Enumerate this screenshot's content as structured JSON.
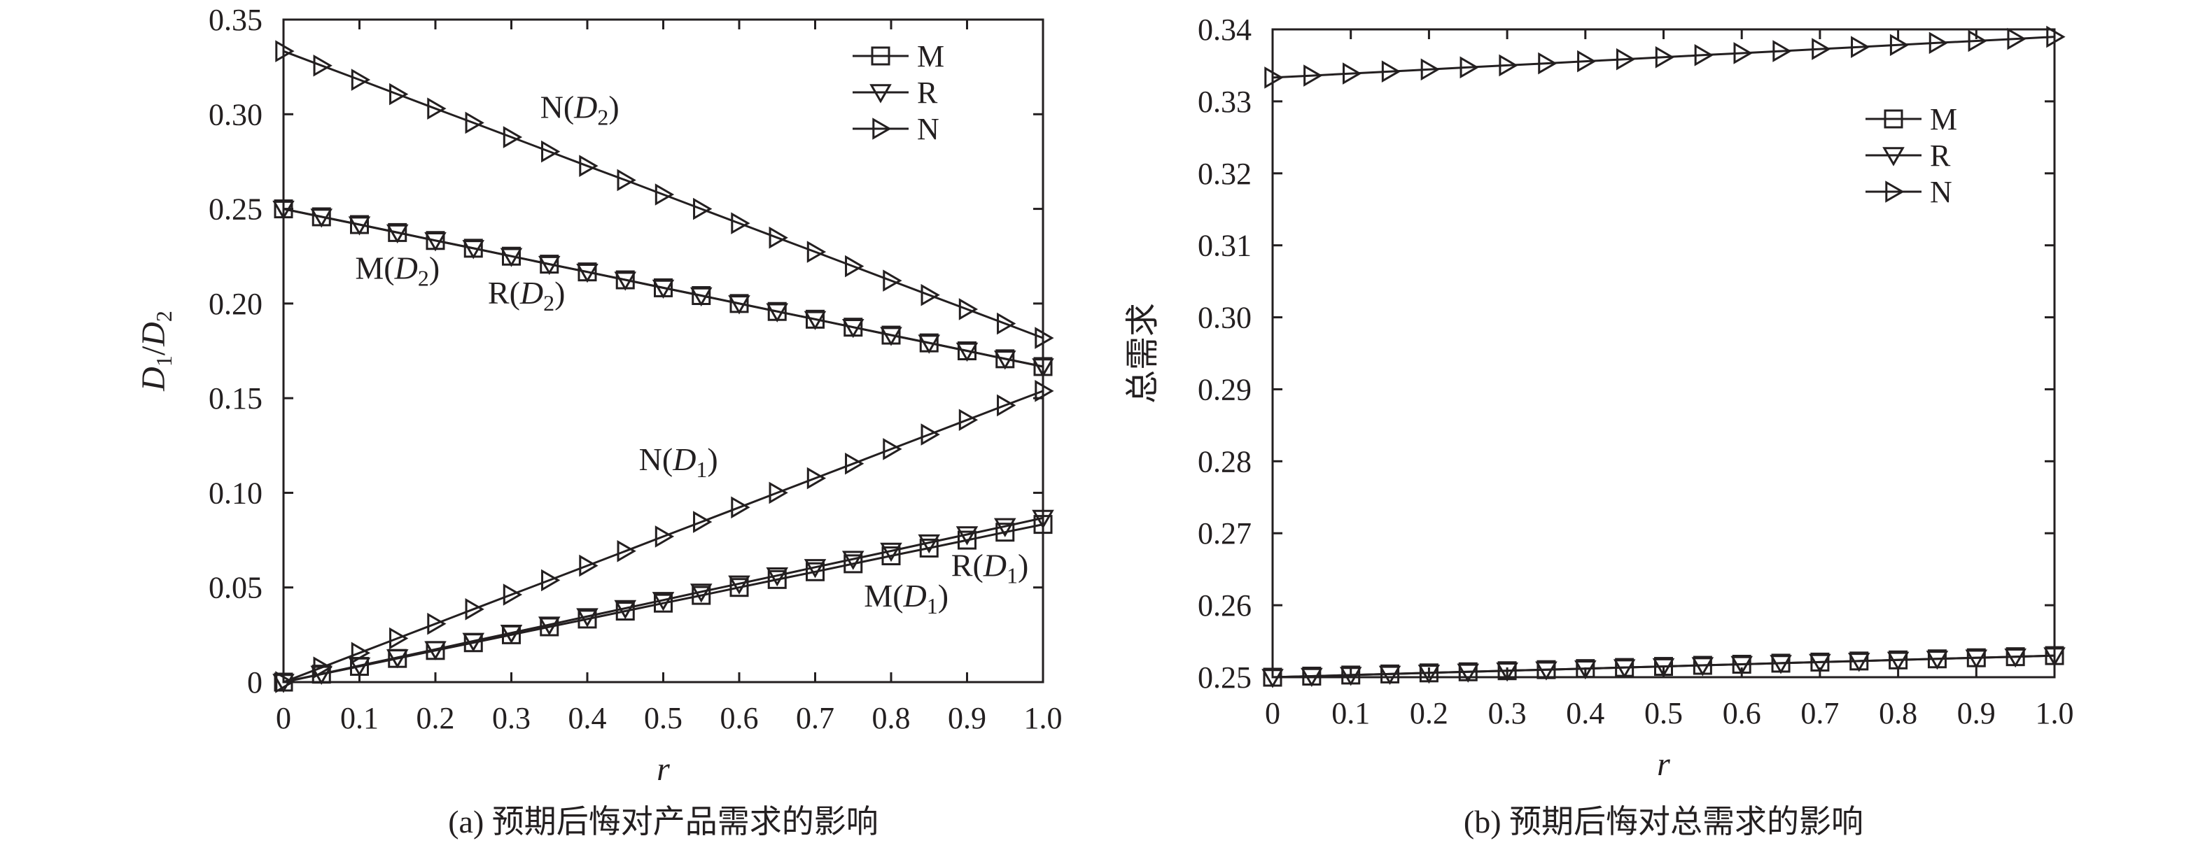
{
  "chart_data": [
    {
      "type": "line",
      "panel": "a",
      "caption": "(a) 预期后悔对产品需求的影响",
      "xlabel": "r",
      "ylabel": "D1/D2",
      "xlim": [
        0,
        1.0
      ],
      "ylim": [
        0,
        0.35
      ],
      "x_ticks": [
        "0",
        "0.1",
        "0.2",
        "0.3",
        "0.4",
        "0.5",
        "0.6",
        "0.7",
        "0.8",
        "0.9",
        "1.0"
      ],
      "y_ticks": [
        "0",
        "0.05",
        "0.10",
        "0.15",
        "0.20",
        "0.25",
        "0.30",
        "0.35"
      ],
      "grid": false,
      "legend_position": "top-right",
      "legend": [
        {
          "name": "M",
          "marker": "square"
        },
        {
          "name": "R",
          "marker": "triangle-down"
        },
        {
          "name": "N",
          "marker": "triangle-right"
        }
      ],
      "x": [
        0,
        0.05,
        0.1,
        0.15,
        0.2,
        0.25,
        0.3,
        0.35,
        0.4,
        0.45,
        0.5,
        0.55,
        0.6,
        0.65,
        0.7,
        0.75,
        0.8,
        0.85,
        0.9,
        0.95,
        1.0
      ],
      "series": [
        {
          "label": "M(D2)",
          "marker": "square",
          "values": [
            0.25,
            0.2458,
            0.2417,
            0.2375,
            0.2333,
            0.2292,
            0.225,
            0.2208,
            0.2167,
            0.2125,
            0.2083,
            0.2042,
            0.2,
            0.1958,
            0.1917,
            0.1875,
            0.1833,
            0.1792,
            0.175,
            0.1708,
            0.1667
          ]
        },
        {
          "label": "R(D2)",
          "marker": "triangle-down",
          "values": [
            0.25,
            0.2458,
            0.2417,
            0.2375,
            0.2333,
            0.2292,
            0.225,
            0.2208,
            0.2167,
            0.2125,
            0.2083,
            0.2042,
            0.2,
            0.1958,
            0.1917,
            0.1875,
            0.1833,
            0.1792,
            0.175,
            0.1708,
            0.1667
          ]
        },
        {
          "label": "N(D2)",
          "marker": "triangle-right",
          "values": [
            0.3333,
            0.3257,
            0.3182,
            0.3106,
            0.303,
            0.2955,
            0.2879,
            0.2803,
            0.2727,
            0.2652,
            0.2576,
            0.25,
            0.2424,
            0.2348,
            0.2273,
            0.2197,
            0.2121,
            0.2045,
            0.197,
            0.1894,
            0.1818
          ]
        },
        {
          "label": "M(D1)",
          "marker": "square",
          "values": [
            0,
            0.0042,
            0.0083,
            0.0125,
            0.0167,
            0.0208,
            0.025,
            0.0292,
            0.0333,
            0.0375,
            0.0417,
            0.0458,
            0.05,
            0.0542,
            0.0583,
            0.0625,
            0.0667,
            0.0708,
            0.075,
            0.0792,
            0.0833
          ]
        },
        {
          "label": "R(D1)",
          "marker": "triangle-down",
          "values": [
            0,
            0.0043,
            0.0087,
            0.013,
            0.0173,
            0.0217,
            0.026,
            0.0303,
            0.0347,
            0.039,
            0.0433,
            0.0477,
            0.052,
            0.0563,
            0.0607,
            0.065,
            0.0693,
            0.0737,
            0.078,
            0.0823,
            0.0867
          ]
        },
        {
          "label": "N(D1)",
          "marker": "triangle-right",
          "values": [
            0,
            0.0077,
            0.0154,
            0.0231,
            0.0308,
            0.0385,
            0.0462,
            0.0538,
            0.0615,
            0.0692,
            0.0769,
            0.0846,
            0.0923,
            0.1,
            0.1077,
            0.1154,
            0.1231,
            0.1308,
            0.1385,
            0.1462,
            0.1538
          ]
        }
      ],
      "annotations": [
        {
          "name": "N",
          "sub": "2",
          "x": 0.39,
          "y": 0.298
        },
        {
          "name": "M",
          "sub": "2",
          "x": 0.15,
          "y": 0.213
        },
        {
          "name": "R",
          "sub": "2",
          "x": 0.32,
          "y": 0.2
        },
        {
          "name": "N",
          "sub": "1",
          "x": 0.52,
          "y": 0.112
        },
        {
          "name": "R",
          "sub": "1",
          "x": 0.93,
          "y": 0.056
        },
        {
          "name": "M",
          "sub": "1",
          "x": 0.82,
          "y": 0.04
        }
      ]
    },
    {
      "type": "line",
      "panel": "b",
      "caption": "(b) 预期后悔对总需求的影响",
      "xlabel": "r",
      "ylabel": "总需求",
      "xlim": [
        0,
        1.0
      ],
      "ylim": [
        0.25,
        0.34
      ],
      "x_ticks": [
        "0",
        "0.1",
        "0.2",
        "0.3",
        "0.4",
        "0.5",
        "0.6",
        "0.7",
        "0.8",
        "0.9",
        "1.0"
      ],
      "y_ticks": [
        "0.25",
        "0.26",
        "0.27",
        "0.28",
        "0.29",
        "0.30",
        "0.31",
        "0.32",
        "0.33",
        "0.34"
      ],
      "grid": false,
      "legend_position": "top-right",
      "legend": [
        {
          "name": "M",
          "marker": "square"
        },
        {
          "name": "R",
          "marker": "triangle-down"
        },
        {
          "name": "N",
          "marker": "triangle-right"
        }
      ],
      "x": [
        0,
        0.05,
        0.1,
        0.15,
        0.2,
        0.25,
        0.3,
        0.35,
        0.4,
        0.45,
        0.5,
        0.55,
        0.6,
        0.65,
        0.7,
        0.75,
        0.8,
        0.85,
        0.9,
        0.95,
        1.0
      ],
      "series": [
        {
          "label": "M",
          "marker": "square",
          "values": [
            0.25,
            0.25015,
            0.2503,
            0.25045,
            0.2506,
            0.25075,
            0.2509,
            0.25105,
            0.2512,
            0.25135,
            0.2515,
            0.25165,
            0.2518,
            0.25195,
            0.2521,
            0.25225,
            0.2524,
            0.25255,
            0.2527,
            0.25285,
            0.253
          ]
        },
        {
          "label": "R",
          "marker": "triangle-down",
          "values": [
            0.25,
            0.25015,
            0.2503,
            0.25045,
            0.2506,
            0.25075,
            0.2509,
            0.25105,
            0.2512,
            0.25135,
            0.2515,
            0.25165,
            0.2518,
            0.25195,
            0.2521,
            0.25225,
            0.2524,
            0.25255,
            0.2527,
            0.25285,
            0.253
          ]
        },
        {
          "label": "N",
          "marker": "triangle-right",
          "values": [
            0.3333,
            0.33358,
            0.33387,
            0.33415,
            0.33443,
            0.33472,
            0.335,
            0.33528,
            0.33557,
            0.33585,
            0.33613,
            0.33642,
            0.3367,
            0.33698,
            0.33727,
            0.33755,
            0.33783,
            0.33812,
            0.3384,
            0.33868,
            0.33897
          ]
        }
      ]
    }
  ]
}
